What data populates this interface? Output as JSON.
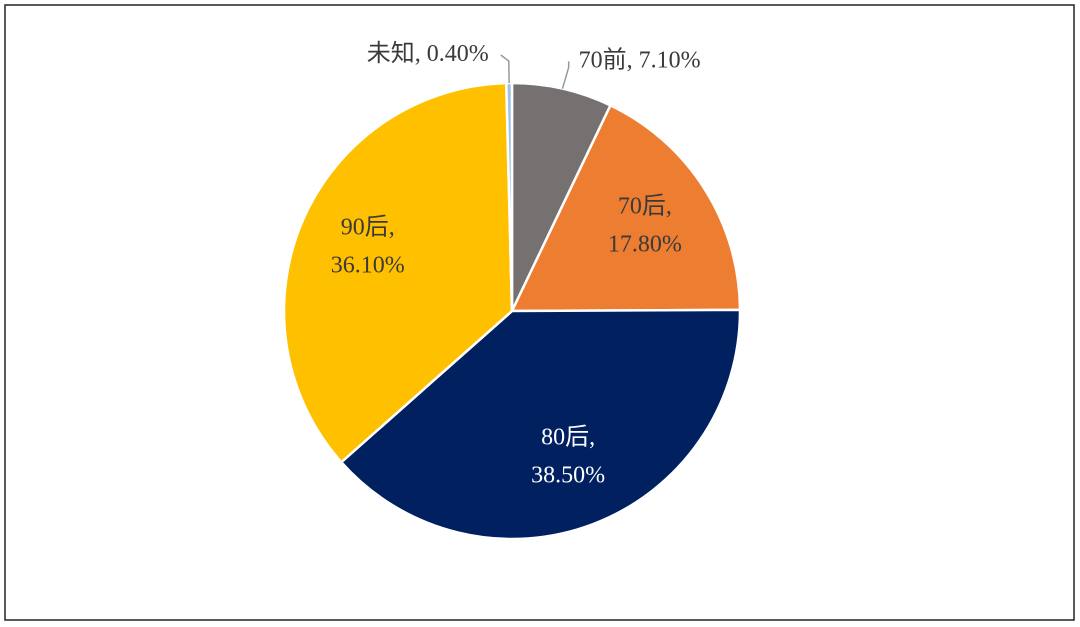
{
  "chart_data": {
    "type": "pie",
    "categories": [
      "70前,",
      "70后,",
      "80后,",
      "90后,",
      "未知,"
    ],
    "values": [
      7.1,
      17.8,
      38.5,
      36.1,
      0.4
    ],
    "value_labels": [
      "7.10%",
      "17.80%",
      "38.50%",
      "36.10%",
      "0.40%"
    ],
    "colors": [
      "#767171",
      "#ed7d31",
      "#002060",
      "#ffc000",
      "#9dc3e6"
    ]
  }
}
